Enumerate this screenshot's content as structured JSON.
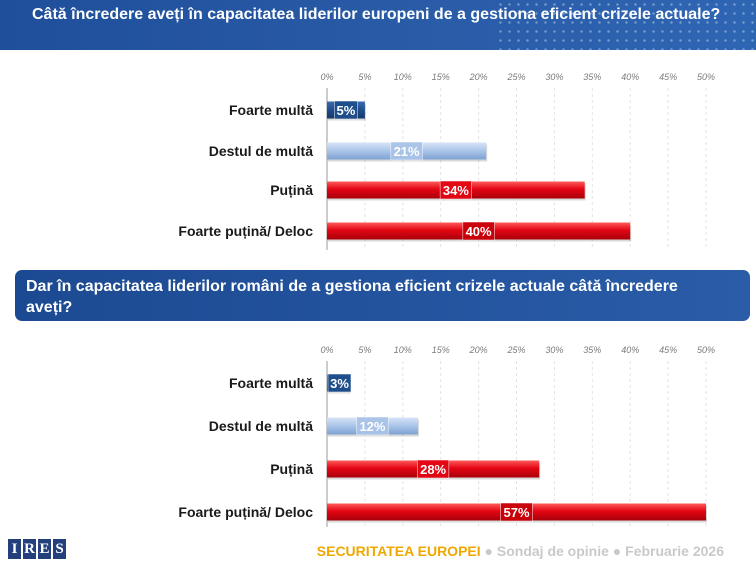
{
  "question1": "Câtă încredere aveți în capacitatea liderilor europeni de a gestiona eficient crizele actuale?",
  "question2": "Dar în capacitatea liderilor români de a gestiona eficient crizele actuale câtă încredere aveți?",
  "chart_data": [
    {
      "type": "bar",
      "orientation": "horizontal",
      "categories": [
        "Foarte multă",
        "Destul de multă",
        "Puțină",
        "Foarte puțină/ Deloc"
      ],
      "values": [
        5,
        21,
        34,
        40
      ],
      "value_labels": [
        "5%",
        "21%",
        "34%",
        "40%"
      ],
      "bar_colors": [
        "#1f4e8c",
        "#a9c4e8",
        "#e30613",
        "#c8000a"
      ],
      "xlim": [
        0,
        50
      ],
      "xticks": [
        "0%",
        "5%",
        "10%",
        "15%",
        "20%",
        "25%",
        "30%",
        "35%",
        "40%",
        "45%",
        "50%"
      ],
      "grid": true
    },
    {
      "type": "bar",
      "orientation": "horizontal",
      "categories": [
        "Foarte multă",
        "Destul de multă",
        "Puțină",
        "Foarte puțină/ Deloc"
      ],
      "values": [
        3,
        12,
        28,
        57
      ],
      "value_labels": [
        "3%",
        "12%",
        "28%",
        "57%"
      ],
      "bar_colors": [
        "#1f4e8c",
        "#a9c4e8",
        "#e30613",
        "#c8000a"
      ],
      "xlim": [
        0,
        50
      ],
      "xticks": [
        "0%",
        "5%",
        "10%",
        "15%",
        "20%",
        "25%",
        "30%",
        "35%",
        "40%",
        "45%",
        "50%"
      ],
      "grid": true
    }
  ],
  "footer": {
    "logo_letters": [
      "I",
      "R",
      "E",
      "S"
    ],
    "brand": "SECURITATEA EUROPEI",
    "separator": "●",
    "survey": "Sondaj de opinie",
    "date": "Februarie 2026"
  }
}
